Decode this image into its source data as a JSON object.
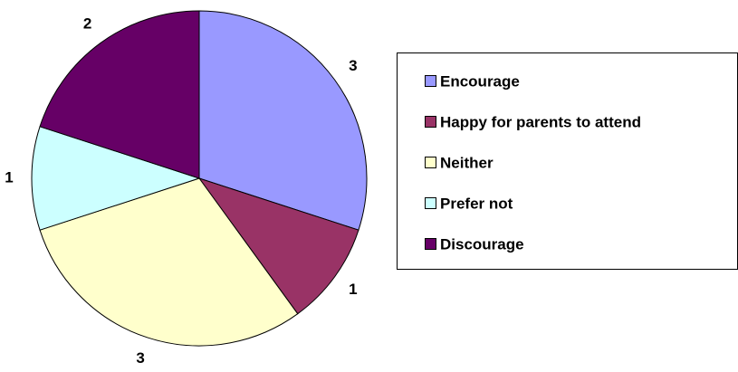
{
  "chart_data": {
    "type": "pie",
    "categories": [
      "Encourage",
      "Happy for parents to attend",
      "Neither",
      "Prefer not",
      "Discourage"
    ],
    "values": [
      3,
      1,
      3,
      1,
      2
    ],
    "colors": [
      "#9999FF",
      "#993366",
      "#FFFFCC",
      "#CCFFFF",
      "#660066"
    ],
    "legend": "right"
  }
}
